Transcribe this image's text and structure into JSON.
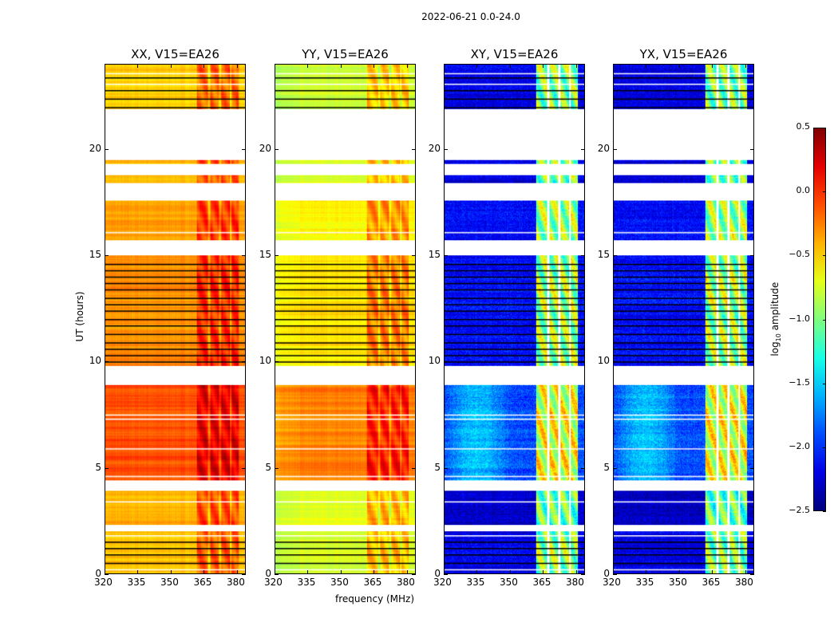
{
  "chart_data": {
    "type": "heatmap",
    "suptitle": "2022-06-21 0.0-24.0",
    "xlabel": "frequency (MHz)",
    "ylabel": "UT (hours)",
    "xlim": [
      320,
      384
    ],
    "ylim": [
      0,
      24
    ],
    "xticks": [
      "320",
      "335",
      "350",
      "365",
      "380"
    ],
    "xtick_values": [
      320,
      335,
      350,
      365,
      380
    ],
    "yticks": [
      "0",
      "5",
      "10",
      "15",
      "20"
    ],
    "ytick_values": [
      0,
      5,
      10,
      15,
      20
    ],
    "panels": [
      {
        "title": "XX, V15=EA26",
        "band_boost": 0.3
      },
      {
        "title": "YY, V15=EA26",
        "band_boost": 0.3
      },
      {
        "title": "XY, V15=EA26",
        "band_boost": 1.2
      },
      {
        "title": "YX, V15=EA26",
        "band_boost": 1.2
      }
    ],
    "rfi_band_mhz": [
      362,
      381
    ],
    "band_gaps_mhz": [
      367.5,
      372.5,
      377.5
    ],
    "segments": [
      {
        "t": [
          0,
          2.0
        ],
        "levels": [
          -0.45,
          -0.75,
          -2.2,
          -2.2
        ]
      },
      {
        "t": [
          2.3,
          3.9
        ],
        "levels": [
          -0.4,
          -0.7,
          -2.3,
          -2.3
        ]
      },
      {
        "t": [
          4.4,
          8.9
        ],
        "levels": [
          -0.1,
          -0.25,
          -1.9,
          -1.9
        ]
      },
      {
        "t": [
          9.8,
          15.0
        ],
        "levels": [
          -0.3,
          -0.55,
          -2.1,
          -2.1
        ]
      },
      {
        "t": [
          15.7,
          17.6
        ],
        "levels": [
          -0.35,
          -0.6,
          -2.1,
          -2.1
        ]
      },
      {
        "t": [
          18.4,
          18.8
        ],
        "levels": [
          -0.4,
          -0.65,
          -2.2,
          -2.2
        ]
      },
      {
        "t": [
          19.3,
          19.5
        ],
        "levels": [
          -0.45,
          -0.7,
          -2.2,
          -2.2
        ]
      },
      {
        "t": [
          21.9,
          24.0
        ],
        "levels": [
          -0.5,
          -0.75,
          -2.2,
          -2.2
        ]
      }
    ],
    "black_lines_hours": [
      0.5,
      0.9,
      1.2,
      1.5,
      10.0,
      10.3,
      10.6,
      10.9,
      11.3,
      11.7,
      12.0,
      12.4,
      12.7,
      13.0,
      13.4,
      13.7,
      14.0,
      14.3,
      14.6,
      22.0,
      22.4,
      22.8,
      23.4
    ],
    "white_lines_hours": [
      0.2,
      1.8,
      3.4,
      4.6,
      5.9,
      7.3,
      7.5,
      16.1,
      23.1,
      23.6
    ],
    "colorbar": {
      "label": "log10 amplitude",
      "label_main": "log",
      "label_sub": "10",
      "label_rest": " amplitude",
      "range": [
        -2.5,
        0.5
      ],
      "ticks": [
        "0.5",
        "0.0",
        "−0.5",
        "−1.0",
        "−1.5",
        "−2.0",
        "−2.5"
      ],
      "tick_values": [
        0.5,
        0.0,
        -0.5,
        -1.0,
        -1.5,
        -2.0,
        -2.5
      ],
      "colormap": "jet"
    }
  }
}
